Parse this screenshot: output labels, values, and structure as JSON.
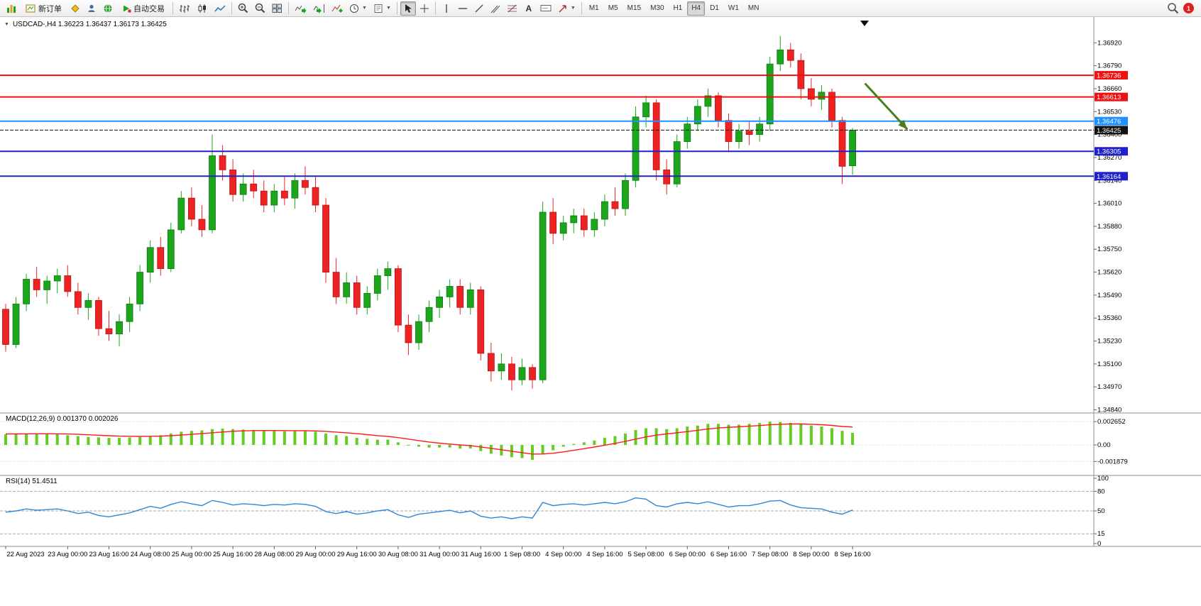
{
  "toolbar": {
    "new_order_label": "新订单",
    "autotrading_label": "自动交易",
    "text_tool_label": "A",
    "timeframes": [
      "M1",
      "M5",
      "M15",
      "M30",
      "H1",
      "H4",
      "D1",
      "W1",
      "MN"
    ],
    "active_timeframe": "H4",
    "badge_count": "1"
  },
  "chart_window": {
    "title": "USDCAD-,H4  1.36223 1.36437 1.36173 1.36425",
    "macd_label": "MACD(12,26,9) 0.001370 0.002026",
    "rsi_label": "RSI(14) 51.4511"
  },
  "chart_data": {
    "type": "candlestick",
    "symbol": "USDCAD-",
    "timeframe": "H4",
    "current_bar": {
      "open": 1.36223,
      "high": 1.36437,
      "low": 1.36173,
      "close": 1.36425
    },
    "colors": {
      "up": "#1ca61c",
      "down": "#ee2222",
      "up_border": "#0e7a0e",
      "down_border": "#b51414"
    },
    "price_axis": {
      "min": 1.3483,
      "max": 1.3705,
      "ticks": [
        1.3692,
        1.3679,
        1.3666,
        1.3653,
        1.364,
        1.3627,
        1.3614,
        1.3601,
        1.3588,
        1.3575,
        1.3562,
        1.3549,
        1.3536,
        1.3523,
        1.351,
        1.3497,
        1.3484
      ]
    },
    "time_axis": {
      "labels": [
        "22 Aug 2023",
        "23 Aug 00:00",
        "23 Aug 16:00",
        "24 Aug 08:00",
        "25 Aug 00:00",
        "25 Aug 16:00",
        "28 Aug 08:00",
        "29 Aug 00:00",
        "29 Aug 16:00",
        "30 Aug 08:00",
        "31 Aug 00:00",
        "31 Aug 16:00",
        "1 Sep 08:00",
        "4 Sep 00:00",
        "4 Sep 16:00",
        "5 Sep 08:00",
        "6 Sep 00:00",
        "6 Sep 16:00",
        "7 Sep 08:00",
        "8 Sep 00:00",
        "8 Sep 16:00"
      ],
      "bar_indexes": [
        0,
        6,
        10,
        14,
        18,
        22,
        26,
        30,
        34,
        38,
        42,
        46,
        50,
        54,
        58,
        62,
        66,
        70,
        74,
        78,
        82
      ]
    },
    "candles": [
      [
        1.3541,
        1.3544,
        1.3517,
        1.3521
      ],
      [
        1.3521,
        1.3548,
        1.3519,
        1.3544
      ],
      [
        1.3544,
        1.3561,
        1.354,
        1.3558
      ],
      [
        1.3558,
        1.3565,
        1.3548,
        1.3552
      ],
      [
        1.3552,
        1.356,
        1.3544,
        1.3557
      ],
      [
        1.3557,
        1.3564,
        1.355,
        1.356
      ],
      [
        1.356,
        1.3566,
        1.3548,
        1.3551
      ],
      [
        1.3551,
        1.3556,
        1.3538,
        1.3542
      ],
      [
        1.3542,
        1.355,
        1.3535,
        1.3546
      ],
      [
        1.3546,
        1.3548,
        1.3526,
        1.353
      ],
      [
        1.353,
        1.354,
        1.3523,
        1.3527
      ],
      [
        1.3527,
        1.3538,
        1.352,
        1.3534
      ],
      [
        1.3534,
        1.3548,
        1.3528,
        1.3544
      ],
      [
        1.3544,
        1.3566,
        1.354,
        1.3562
      ],
      [
        1.3562,
        1.358,
        1.3556,
        1.3576
      ],
      [
        1.3576,
        1.3582,
        1.356,
        1.3564
      ],
      [
        1.3564,
        1.359,
        1.3562,
        1.3586
      ],
      [
        1.3586,
        1.3608,
        1.3584,
        1.3604
      ],
      [
        1.3604,
        1.361,
        1.3588,
        1.3592
      ],
      [
        1.3592,
        1.36,
        1.3582,
        1.3586
      ],
      [
        1.3586,
        1.364,
        1.3584,
        1.3628
      ],
      [
        1.3628,
        1.3634,
        1.3614,
        1.362
      ],
      [
        1.362,
        1.3626,
        1.3602,
        1.3606
      ],
      [
        1.3606,
        1.3618,
        1.3602,
        1.3612
      ],
      [
        1.3612,
        1.362,
        1.3604,
        1.3608
      ],
      [
        1.3608,
        1.3614,
        1.3596,
        1.36
      ],
      [
        1.36,
        1.3612,
        1.3596,
        1.3608
      ],
      [
        1.3608,
        1.3616,
        1.36,
        1.3604
      ],
      [
        1.3604,
        1.3618,
        1.3598,
        1.3614
      ],
      [
        1.3614,
        1.3622,
        1.3606,
        1.361
      ],
      [
        1.361,
        1.3616,
        1.3596,
        1.36
      ],
      [
        1.36,
        1.3604,
        1.3556,
        1.3562
      ],
      [
        1.3562,
        1.357,
        1.3544,
        1.3548
      ],
      [
        1.3548,
        1.3562,
        1.3544,
        1.3556
      ],
      [
        1.3556,
        1.356,
        1.3538,
        1.3542
      ],
      [
        1.3542,
        1.3554,
        1.3538,
        1.355
      ],
      [
        1.355,
        1.3564,
        1.3546,
        1.356
      ],
      [
        1.356,
        1.3568,
        1.3552,
        1.3564
      ],
      [
        1.3564,
        1.3566,
        1.3528,
        1.3532
      ],
      [
        1.3532,
        1.3538,
        1.3515,
        1.3522
      ],
      [
        1.3522,
        1.3538,
        1.3518,
        1.3534
      ],
      [
        1.3534,
        1.3546,
        1.3528,
        1.3542
      ],
      [
        1.3542,
        1.3552,
        1.3536,
        1.3548
      ],
      [
        1.3548,
        1.3558,
        1.3542,
        1.3554
      ],
      [
        1.3554,
        1.3558,
        1.3538,
        1.3542
      ],
      [
        1.3542,
        1.3556,
        1.3538,
        1.3552
      ],
      [
        1.3552,
        1.3554,
        1.3512,
        1.3516
      ],
      [
        1.3516,
        1.3522,
        1.35,
        1.3506
      ],
      [
        1.3506,
        1.3516,
        1.3501,
        1.351
      ],
      [
        1.351,
        1.3514,
        1.3495,
        1.3501
      ],
      [
        1.3501,
        1.3513,
        1.3498,
        1.3508
      ],
      [
        1.3508,
        1.351,
        1.3496,
        1.3501
      ],
      [
        1.3501,
        1.3602,
        1.3499,
        1.3596
      ],
      [
        1.3596,
        1.3604,
        1.3578,
        1.3584
      ],
      [
        1.3584,
        1.3594,
        1.358,
        1.359
      ],
      [
        1.359,
        1.3598,
        1.3584,
        1.3594
      ],
      [
        1.3594,
        1.3598,
        1.3582,
        1.3586
      ],
      [
        1.3586,
        1.3596,
        1.3582,
        1.3592
      ],
      [
        1.3592,
        1.3606,
        1.3588,
        1.3602
      ],
      [
        1.3602,
        1.361,
        1.3594,
        1.3598
      ],
      [
        1.3598,
        1.3618,
        1.3594,
        1.3614
      ],
      [
        1.3614,
        1.3656,
        1.361,
        1.365
      ],
      [
        1.365,
        1.3662,
        1.3644,
        1.3658
      ],
      [
        1.3658,
        1.366,
        1.3614,
        1.362
      ],
      [
        1.362,
        1.3626,
        1.3606,
        1.3612
      ],
      [
        1.3612,
        1.364,
        1.361,
        1.3636
      ],
      [
        1.3636,
        1.365,
        1.3632,
        1.3646
      ],
      [
        1.3646,
        1.366,
        1.3642,
        1.3656
      ],
      [
        1.3656,
        1.3666,
        1.365,
        1.3662
      ],
      [
        1.3662,
        1.3664,
        1.3644,
        1.3648
      ],
      [
        1.3648,
        1.3652,
        1.363,
        1.3636
      ],
      [
        1.3636,
        1.3646,
        1.3632,
        1.3642
      ],
      [
        1.3642,
        1.3648,
        1.3634,
        1.364
      ],
      [
        1.364,
        1.365,
        1.3636,
        1.3646
      ],
      [
        1.3646,
        1.3684,
        1.3642,
        1.368
      ],
      [
        1.368,
        1.3696,
        1.3676,
        1.3688
      ],
      [
        1.3688,
        1.3692,
        1.3678,
        1.3682
      ],
      [
        1.3682,
        1.3686,
        1.366,
        1.3666
      ],
      [
        1.3666,
        1.3672,
        1.3656,
        1.366
      ],
      [
        1.366,
        1.3668,
        1.3654,
        1.3664
      ],
      [
        1.3664,
        1.3666,
        1.3644,
        1.3648
      ],
      [
        1.3648,
        1.365,
        1.3612,
        1.3622
      ],
      [
        1.36223,
        1.36437,
        1.36173,
        1.36425
      ]
    ],
    "horizontal_lines": [
      {
        "price": 1.36736,
        "color": "#ee1111",
        "width": 2,
        "label": "1.36736"
      },
      {
        "price": 1.36613,
        "color": "#ee1111",
        "width": 2,
        "label": "1.36613"
      },
      {
        "price": 1.36476,
        "color": "#1e90ff",
        "width": 2,
        "label": "1.36476"
      },
      {
        "price": 1.36305,
        "color": "#2121cc",
        "width": 2,
        "label": "1.36305"
      },
      {
        "price": 1.36164,
        "color": "#2121cc",
        "width": 2,
        "label": "1.36164"
      }
    ],
    "current_price": {
      "price": 1.36425,
      "label": "1.36425",
      "color": "#111111"
    },
    "arrow_annotation": {
      "from": {
        "bar": 83.2,
        "price": 1.3669
      },
      "to": {
        "bar": 87.3,
        "price": 1.3643
      },
      "color": "#4a7d1e"
    },
    "indicators": {
      "macd": {
        "name": "MACD",
        "params": "12,26,9",
        "value": 0.00137,
        "signal_value": 0.002026,
        "histogram_color": "#66cc22",
        "signal_color": "#ff1a1a",
        "scale_ticks": [
          0.002652,
          0.0,
          -0.001879
        ],
        "scale_tick_labels": [
          "0.002652",
          "0.00",
          "-0.001879"
        ],
        "histogram": [
          0.0012,
          0.00125,
          0.0013,
          0.0013,
          0.00125,
          0.0012,
          0.0011,
          0.001,
          0.0009,
          0.00085,
          0.0008,
          0.0008,
          0.00085,
          0.0009,
          0.001,
          0.0011,
          0.0013,
          0.0015,
          0.0016,
          0.00165,
          0.0018,
          0.00185,
          0.0018,
          0.00175,
          0.0017,
          0.00165,
          0.0016,
          0.00155,
          0.0016,
          0.00155,
          0.0015,
          0.0013,
          0.0011,
          0.001,
          0.0008,
          0.0007,
          0.0006,
          0.0006,
          0.0003,
          0.0,
          -0.0002,
          -0.0003,
          -0.0003,
          -0.0003,
          -0.0004,
          -0.0004,
          -0.0007,
          -0.001,
          -0.0012,
          -0.0014,
          -0.0015,
          -0.0017,
          -0.001,
          -0.0006,
          -0.0002,
          0.0001,
          0.0003,
          0.0005,
          0.0008,
          0.001,
          0.0013,
          0.0017,
          0.0019,
          0.0019,
          0.0018,
          0.0019,
          0.0021,
          0.0022,
          0.0024,
          0.0024,
          0.0023,
          0.0023,
          0.0024,
          0.0025,
          0.00265,
          0.0026,
          0.0025,
          0.0024,
          0.0022,
          0.0021,
          0.0019,
          0.0016,
          0.00137
        ],
        "signal": [
          0.00125,
          0.00125,
          0.00126,
          0.00127,
          0.00127,
          0.00126,
          0.00124,
          0.0012,
          0.00115,
          0.0011,
          0.00105,
          0.001,
          0.00098,
          0.00097,
          0.00098,
          0.001,
          0.00105,
          0.00112,
          0.0012,
          0.00128,
          0.00138,
          0.00147,
          0.00155,
          0.0016,
          0.00163,
          0.00164,
          0.00164,
          0.00163,
          0.00162,
          0.00161,
          0.00159,
          0.00154,
          0.00146,
          0.00138,
          0.00128,
          0.00117,
          0.00106,
          0.00097,
          0.00083,
          0.00066,
          0.00049,
          0.00033,
          0.0002,
          0.0001,
          0.0,
          -9e-05,
          -0.00023,
          -0.00039,
          -0.00055,
          -0.00072,
          -0.00088,
          -0.00104,
          -0.00103,
          -0.00094,
          -0.00079,
          -0.00061,
          -0.00043,
          -0.00024,
          -3e-05,
          0.00018,
          0.0004,
          0.00066,
          0.00091,
          0.00111,
          0.00125,
          0.00138,
          0.00152,
          0.00166,
          0.00181,
          0.00193,
          0.002,
          0.00206,
          0.00213,
          0.0022,
          0.00229,
          0.00235,
          0.00238,
          0.00238,
          0.00235,
          0.0023,
          0.00222,
          0.0021,
          0.00203
        ]
      },
      "rsi": {
        "name": "RSI",
        "params": "14",
        "value": 51.4511,
        "line_color": "#2e86d8",
        "levels": [
          80,
          50,
          15
        ],
        "scale_values": [
          100,
          80,
          50,
          15,
          0
        ],
        "scale_labels": [
          "100",
          "80",
          "50",
          "15",
          "0"
        ],
        "values": [
          48,
          50,
          53,
          51,
          52,
          53,
          50,
          46,
          48,
          43,
          41,
          44,
          47,
          52,
          57,
          54,
          60,
          64,
          61,
          58,
          66,
          63,
          59,
          61,
          60,
          58,
          60,
          59,
          61,
          60,
          57,
          49,
          46,
          49,
          45,
          47,
          50,
          52,
          44,
          40,
          45,
          47,
          49,
          51,
          47,
          50,
          42,
          39,
          41,
          38,
          41,
          39,
          63,
          58,
          60,
          61,
          59,
          61,
          63,
          61,
          64,
          70,
          68,
          58,
          56,
          61,
          63,
          61,
          64,
          60,
          56,
          58,
          58,
          61,
          65,
          66,
          59,
          55,
          54,
          53,
          48,
          45,
          51.45
        ]
      }
    }
  }
}
